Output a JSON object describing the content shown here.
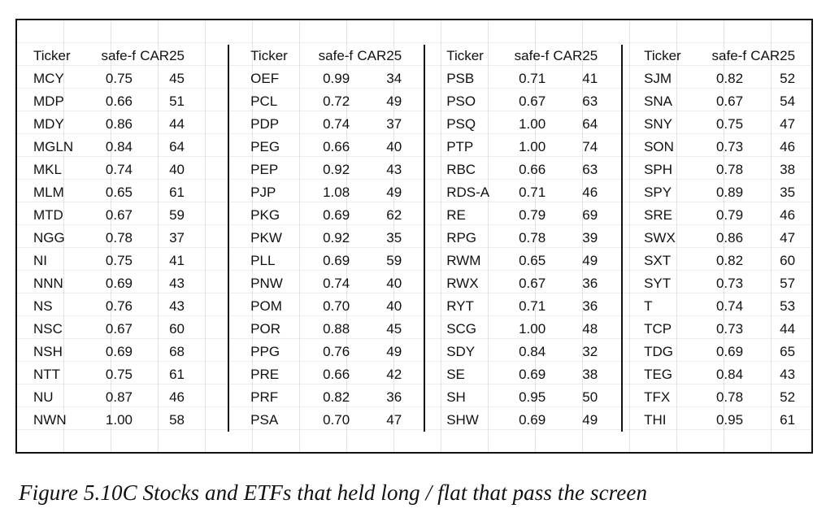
{
  "columns": [
    "Ticker",
    "safe-f",
    "CAR25"
  ],
  "groups": [
    {
      "rows": [
        [
          "MCY",
          "0.75",
          "45"
        ],
        [
          "MDP",
          "0.66",
          "51"
        ],
        [
          "MDY",
          "0.86",
          "44"
        ],
        [
          "MGLN",
          "0.84",
          "64"
        ],
        [
          "MKL",
          "0.74",
          "40"
        ],
        [
          "MLM",
          "0.65",
          "61"
        ],
        [
          "MTD",
          "0.67",
          "59"
        ],
        [
          "NGG",
          "0.78",
          "37"
        ],
        [
          "NI",
          "0.75",
          "41"
        ],
        [
          "NNN",
          "0.69",
          "43"
        ],
        [
          "NS",
          "0.76",
          "43"
        ],
        [
          "NSC",
          "0.67",
          "60"
        ],
        [
          "NSH",
          "0.69",
          "68"
        ],
        [
          "NTT",
          "0.75",
          "61"
        ],
        [
          "NU",
          "0.87",
          "46"
        ],
        [
          "NWN",
          "1.00",
          "58"
        ]
      ]
    },
    {
      "rows": [
        [
          "OEF",
          "0.99",
          "34"
        ],
        [
          "PCL",
          "0.72",
          "49"
        ],
        [
          "PDP",
          "0.74",
          "37"
        ],
        [
          "PEG",
          "0.66",
          "40"
        ],
        [
          "PEP",
          "0.92",
          "43"
        ],
        [
          "PJP",
          "1.08",
          "49"
        ],
        [
          "PKG",
          "0.69",
          "62"
        ],
        [
          "PKW",
          "0.92",
          "35"
        ],
        [
          "PLL",
          "0.69",
          "59"
        ],
        [
          "PNW",
          "0.74",
          "40"
        ],
        [
          "POM",
          "0.70",
          "40"
        ],
        [
          "POR",
          "0.88",
          "45"
        ],
        [
          "PPG",
          "0.76",
          "49"
        ],
        [
          "PRE",
          "0.66",
          "42"
        ],
        [
          "PRF",
          "0.82",
          "36"
        ],
        [
          "PSA",
          "0.70",
          "47"
        ]
      ]
    },
    {
      "rows": [
        [
          "PSB",
          "0.71",
          "41"
        ],
        [
          "PSO",
          "0.67",
          "63"
        ],
        [
          "PSQ",
          "1.00",
          "64"
        ],
        [
          "PTP",
          "1.00",
          "74"
        ],
        [
          "RBC",
          "0.66",
          "63"
        ],
        [
          "RDS-A",
          "0.71",
          "46"
        ],
        [
          "RE",
          "0.79",
          "69"
        ],
        [
          "RPG",
          "0.78",
          "39"
        ],
        [
          "RWM",
          "0.65",
          "49"
        ],
        [
          "RWX",
          "0.67",
          "36"
        ],
        [
          "RYT",
          "0.71",
          "36"
        ],
        [
          "SCG",
          "1.00",
          "48"
        ],
        [
          "SDY",
          "0.84",
          "32"
        ],
        [
          "SE",
          "0.69",
          "38"
        ],
        [
          "SH",
          "0.95",
          "50"
        ],
        [
          "SHW",
          "0.69",
          "49"
        ]
      ]
    },
    {
      "rows": [
        [
          "SJM",
          "0.82",
          "52"
        ],
        [
          "SNA",
          "0.67",
          "54"
        ],
        [
          "SNY",
          "0.75",
          "47"
        ],
        [
          "SON",
          "0.73",
          "46"
        ],
        [
          "SPH",
          "0.78",
          "38"
        ],
        [
          "SPY",
          "0.89",
          "35"
        ],
        [
          "SRE",
          "0.79",
          "46"
        ],
        [
          "SWX",
          "0.86",
          "47"
        ],
        [
          "SXT",
          "0.82",
          "60"
        ],
        [
          "SYT",
          "0.73",
          "57"
        ],
        [
          "T",
          "0.74",
          "53"
        ],
        [
          "TCP",
          "0.73",
          "44"
        ],
        [
          "TDG",
          "0.69",
          "65"
        ],
        [
          "TEG",
          "0.84",
          "43"
        ],
        [
          "TFX",
          "0.78",
          "52"
        ],
        [
          "THI",
          "0.95",
          "61"
        ]
      ]
    }
  ],
  "caption": "Figure 5.10C  Stocks and ETFs that held long / flat that pass the screen"
}
